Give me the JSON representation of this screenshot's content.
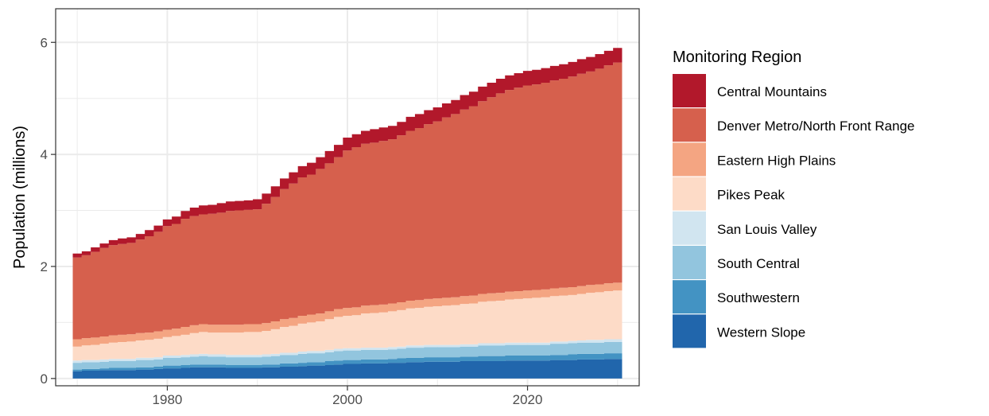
{
  "chart_data": {
    "type": "area",
    "stacked": true,
    "title": "",
    "xlabel": "",
    "ylabel": "Population (millions)",
    "xlim": [
      1967.6,
      2032.4
    ],
    "ylim": [
      -0.13,
      6.6
    ],
    "x_ticks": [
      1980,
      2000,
      2020
    ],
    "y_ticks": [
      0,
      2,
      4,
      6
    ],
    "legend_title": "Monitoring Region",
    "legend_position": "right",
    "grid": true,
    "x": [
      1970,
      1971,
      1972,
      1973,
      1974,
      1975,
      1976,
      1977,
      1978,
      1979,
      1980,
      1981,
      1982,
      1983,
      1984,
      1985,
      1986,
      1987,
      1988,
      1989,
      1990,
      1991,
      1992,
      1993,
      1994,
      1995,
      1996,
      1997,
      1998,
      1999,
      2000,
      2001,
      2002,
      2003,
      2004,
      2005,
      2006,
      2007,
      2008,
      2009,
      2010,
      2011,
      2012,
      2013,
      2014,
      2015,
      2016,
      2017,
      2018,
      2019,
      2020,
      2021,
      2022,
      2023,
      2024,
      2025,
      2026,
      2027,
      2028,
      2029,
      2030
    ],
    "series": [
      {
        "name": "Western Slope",
        "color": "#2166AC",
        "values": [
          0.13,
          0.14,
          0.14,
          0.15,
          0.15,
          0.15,
          0.15,
          0.16,
          0.16,
          0.17,
          0.18,
          0.18,
          0.19,
          0.2,
          0.2,
          0.2,
          0.2,
          0.19,
          0.19,
          0.19,
          0.19,
          0.2,
          0.2,
          0.21,
          0.21,
          0.22,
          0.23,
          0.23,
          0.24,
          0.25,
          0.26,
          0.26,
          0.27,
          0.27,
          0.27,
          0.28,
          0.28,
          0.29,
          0.29,
          0.3,
          0.3,
          0.3,
          0.3,
          0.31,
          0.31,
          0.31,
          0.31,
          0.31,
          0.32,
          0.32,
          0.32,
          0.32,
          0.32,
          0.33,
          0.33,
          0.33,
          0.34,
          0.34,
          0.34,
          0.35,
          0.35
        ]
      },
      {
        "name": "Southwestern",
        "color": "#4393C3",
        "values": [
          0.03,
          0.03,
          0.03,
          0.03,
          0.04,
          0.04,
          0.04,
          0.04,
          0.04,
          0.04,
          0.05,
          0.05,
          0.05,
          0.05,
          0.05,
          0.05,
          0.05,
          0.05,
          0.05,
          0.05,
          0.05,
          0.05,
          0.05,
          0.06,
          0.06,
          0.06,
          0.06,
          0.06,
          0.07,
          0.07,
          0.07,
          0.07,
          0.07,
          0.07,
          0.07,
          0.07,
          0.08,
          0.08,
          0.08,
          0.08,
          0.08,
          0.08,
          0.08,
          0.08,
          0.08,
          0.09,
          0.09,
          0.09,
          0.09,
          0.09,
          0.09,
          0.09,
          0.09,
          0.09,
          0.09,
          0.1,
          0.1,
          0.1,
          0.1,
          0.1,
          0.1
        ]
      },
      {
        "name": "South Central",
        "color": "#92C5DE",
        "values": [
          0.12,
          0.12,
          0.12,
          0.12,
          0.12,
          0.12,
          0.12,
          0.13,
          0.13,
          0.13,
          0.14,
          0.14,
          0.14,
          0.14,
          0.15,
          0.14,
          0.14,
          0.14,
          0.14,
          0.14,
          0.14,
          0.14,
          0.15,
          0.15,
          0.15,
          0.16,
          0.16,
          0.16,
          0.16,
          0.17,
          0.17,
          0.17,
          0.17,
          0.17,
          0.17,
          0.17,
          0.17,
          0.18,
          0.18,
          0.18,
          0.18,
          0.18,
          0.18,
          0.18,
          0.18,
          0.19,
          0.19,
          0.19,
          0.19,
          0.19,
          0.19,
          0.19,
          0.19,
          0.2,
          0.2,
          0.2,
          0.2,
          0.2,
          0.2,
          0.2,
          0.2
        ]
      },
      {
        "name": "San Louis Valley",
        "color": "#D1E5F0",
        "values": [
          0.04,
          0.04,
          0.04,
          0.04,
          0.04,
          0.04,
          0.04,
          0.04,
          0.04,
          0.04,
          0.04,
          0.04,
          0.04,
          0.04,
          0.04,
          0.04,
          0.04,
          0.04,
          0.04,
          0.04,
          0.04,
          0.04,
          0.04,
          0.04,
          0.04,
          0.04,
          0.04,
          0.04,
          0.04,
          0.04,
          0.04,
          0.04,
          0.04,
          0.04,
          0.04,
          0.04,
          0.04,
          0.04,
          0.04,
          0.04,
          0.04,
          0.04,
          0.04,
          0.04,
          0.04,
          0.04,
          0.04,
          0.04,
          0.04,
          0.04,
          0.04,
          0.04,
          0.04,
          0.04,
          0.04,
          0.04,
          0.04,
          0.05,
          0.05,
          0.05,
          0.05
        ]
      },
      {
        "name": "Pikes Peak",
        "color": "#FDDBC7",
        "values": [
          0.25,
          0.26,
          0.27,
          0.28,
          0.29,
          0.3,
          0.31,
          0.31,
          0.32,
          0.33,
          0.33,
          0.35,
          0.36,
          0.38,
          0.39,
          0.39,
          0.39,
          0.4,
          0.4,
          0.41,
          0.41,
          0.42,
          0.44,
          0.46,
          0.48,
          0.5,
          0.51,
          0.53,
          0.55,
          0.57,
          0.58,
          0.59,
          0.61,
          0.62,
          0.63,
          0.64,
          0.65,
          0.66,
          0.67,
          0.68,
          0.69,
          0.7,
          0.71,
          0.72,
          0.73,
          0.74,
          0.75,
          0.76,
          0.77,
          0.78,
          0.79,
          0.8,
          0.81,
          0.81,
          0.82,
          0.82,
          0.83,
          0.84,
          0.85,
          0.86,
          0.87
        ]
      },
      {
        "name": "Eastern High Plains",
        "color": "#F4A582",
        "values": [
          0.13,
          0.13,
          0.13,
          0.13,
          0.13,
          0.13,
          0.13,
          0.13,
          0.13,
          0.13,
          0.13,
          0.13,
          0.14,
          0.14,
          0.14,
          0.14,
          0.14,
          0.14,
          0.14,
          0.14,
          0.14,
          0.14,
          0.14,
          0.14,
          0.14,
          0.14,
          0.14,
          0.14,
          0.14,
          0.14,
          0.14,
          0.14,
          0.14,
          0.14,
          0.14,
          0.14,
          0.14,
          0.14,
          0.14,
          0.14,
          0.14,
          0.14,
          0.14,
          0.14,
          0.14,
          0.14,
          0.14,
          0.14,
          0.14,
          0.14,
          0.14,
          0.14,
          0.14,
          0.14,
          0.14,
          0.14,
          0.14,
          0.14,
          0.14,
          0.14,
          0.14
        ]
      },
      {
        "name": "Denver Metro/North Front Range",
        "color": "#D6604D",
        "values": [
          1.46,
          1.48,
          1.53,
          1.58,
          1.61,
          1.62,
          1.63,
          1.67,
          1.72,
          1.78,
          1.85,
          1.87,
          1.93,
          1.95,
          1.96,
          1.98,
          2.0,
          2.03,
          2.04,
          2.04,
          2.05,
          2.13,
          2.22,
          2.32,
          2.4,
          2.47,
          2.5,
          2.58,
          2.64,
          2.71,
          2.81,
          2.86,
          2.89,
          2.9,
          2.92,
          2.93,
          2.98,
          3.03,
          3.07,
          3.12,
          3.16,
          3.22,
          3.27,
          3.33,
          3.38,
          3.44,
          3.5,
          3.56,
          3.6,
          3.63,
          3.66,
          3.67,
          3.69,
          3.71,
          3.73,
          3.76,
          3.79,
          3.81,
          3.85,
          3.89,
          3.93
        ]
      },
      {
        "name": "Central Mountains",
        "color": "#B2182B",
        "values": [
          0.07,
          0.07,
          0.08,
          0.08,
          0.09,
          0.1,
          0.1,
          0.1,
          0.11,
          0.11,
          0.12,
          0.13,
          0.14,
          0.15,
          0.16,
          0.16,
          0.17,
          0.17,
          0.17,
          0.17,
          0.18,
          0.18,
          0.19,
          0.19,
          0.2,
          0.2,
          0.21,
          0.21,
          0.22,
          0.22,
          0.23,
          0.23,
          0.23,
          0.24,
          0.24,
          0.24,
          0.24,
          0.25,
          0.25,
          0.25,
          0.25,
          0.25,
          0.25,
          0.26,
          0.26,
          0.26,
          0.26,
          0.26,
          0.26,
          0.26,
          0.26,
          0.26,
          0.26,
          0.26,
          0.26,
          0.26,
          0.26,
          0.26,
          0.26,
          0.26,
          0.26
        ]
      }
    ],
    "legend_order": [
      "Central Mountains",
      "Denver Metro/North Front Range",
      "Eastern High Plains",
      "Pikes Peak",
      "San Louis Valley",
      "South Central",
      "Southwestern",
      "Western Slope"
    ]
  }
}
